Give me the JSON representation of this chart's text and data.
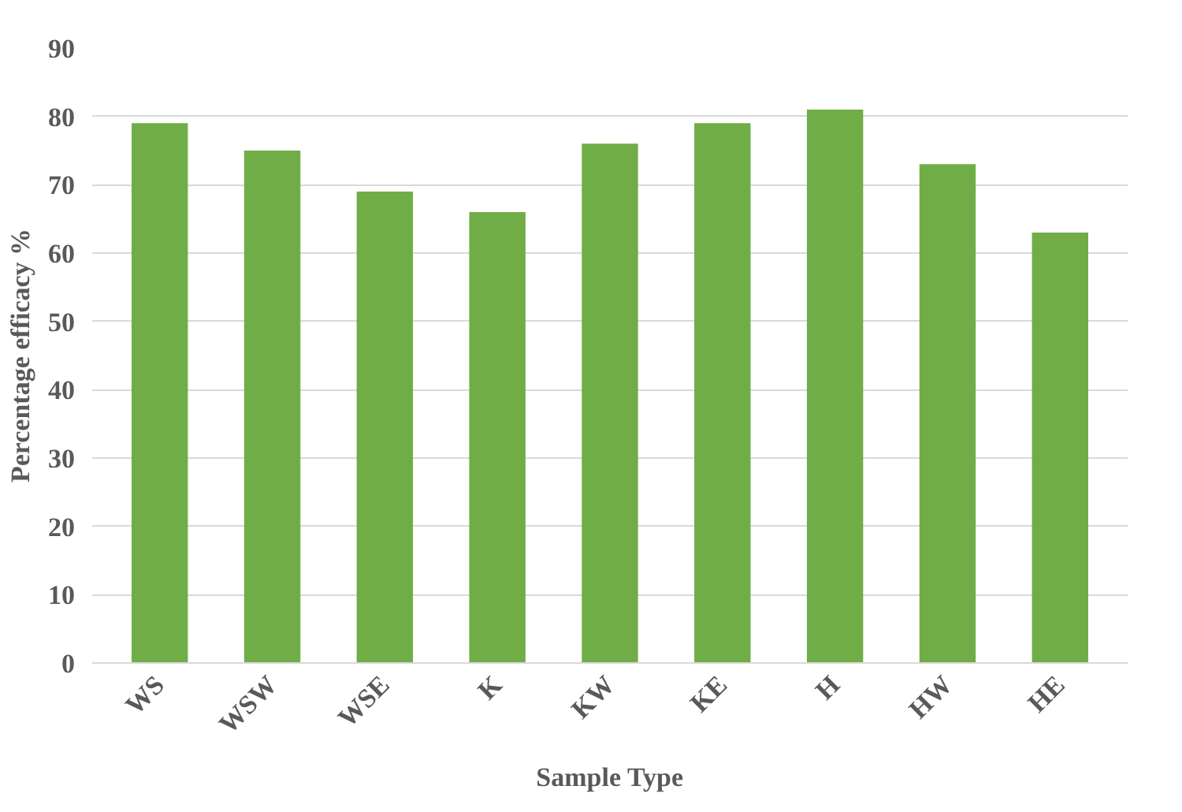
{
  "chart_data": {
    "type": "bar",
    "xlabel": "Sample Type",
    "ylabel": "Percentage efficacy %",
    "categories": [
      "WS",
      "WSW",
      "WSE",
      "K",
      "KW",
      "KE",
      "H",
      "HW",
      "HE"
    ],
    "values": [
      79,
      75,
      69,
      66,
      76,
      79,
      81,
      73,
      63
    ],
    "color": "#70ad47",
    "ylim": [
      0,
      90
    ],
    "yticks": [
      0,
      10,
      20,
      30,
      40,
      50,
      60,
      70,
      80,
      90
    ],
    "grid": "y"
  }
}
